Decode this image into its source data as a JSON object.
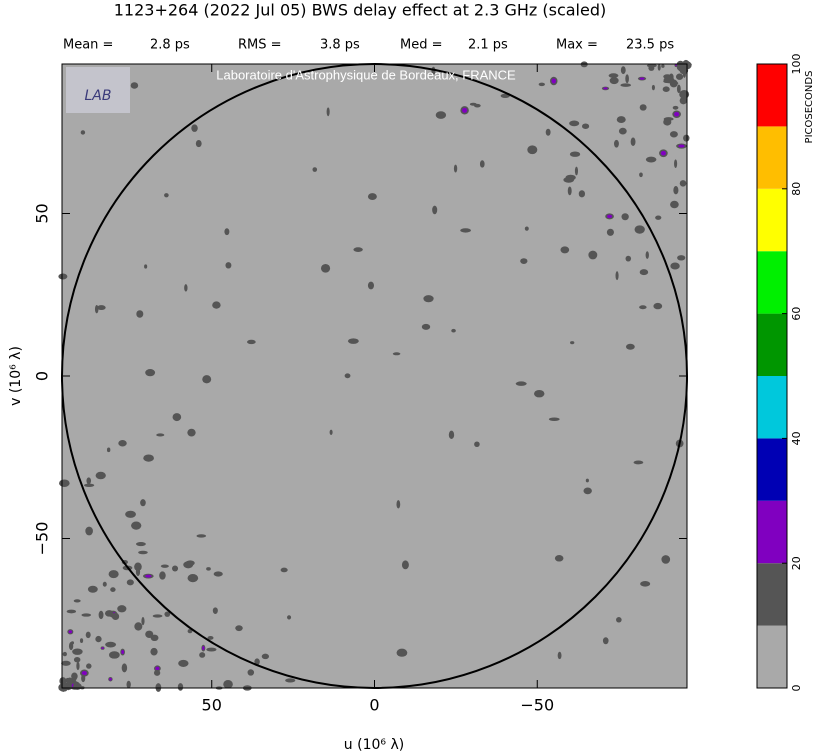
{
  "chart_data": {
    "type": "uvmap",
    "title": "1123+264  (2022 Jul 05)   BWS delay effect at  2.3 GHz (scaled)",
    "stats": [
      {
        "label": "Mean =",
        "value": "2.8 ps"
      },
      {
        "label": "RMS =",
        "value": "3.8 ps"
      },
      {
        "label": "Med =",
        "value": "2.1 ps"
      },
      {
        "label": "Max =",
        "value": "23.5 ps"
      }
    ],
    "credit": "Laboratoire d'Astrophysique de Bordeaux, FRANCE",
    "logo": "LAB",
    "x_label": "u  (10⁶ λ)",
    "y_label": "v  (10⁶ λ)",
    "xlim": [
      96,
      -96
    ],
    "ylim": [
      -96,
      96
    ],
    "xticks": [
      {
        "value": 50,
        "label": "50"
      },
      0,
      {
        "value": -50,
        "label": "−50"
      }
    ],
    "yticks": [
      {
        "value": -50,
        "label": "−50"
      },
      0,
      50
    ],
    "colorbar": {
      "label": "PICOSECONDS",
      "lim": [
        0,
        100
      ],
      "bins": [
        0,
        10,
        20,
        30,
        40,
        50,
        60,
        70,
        80,
        90,
        100
      ],
      "colors": [
        "#a9a9a9",
        "#555555",
        "#8000c0",
        "#0000b4",
        "#00c8dc",
        "#009600",
        "#00f000",
        "#ffff00",
        "#ffbe00",
        "#ff0000"
      ],
      "ticks": [
        0,
        20,
        40,
        60,
        80,
        100
      ]
    }
  }
}
